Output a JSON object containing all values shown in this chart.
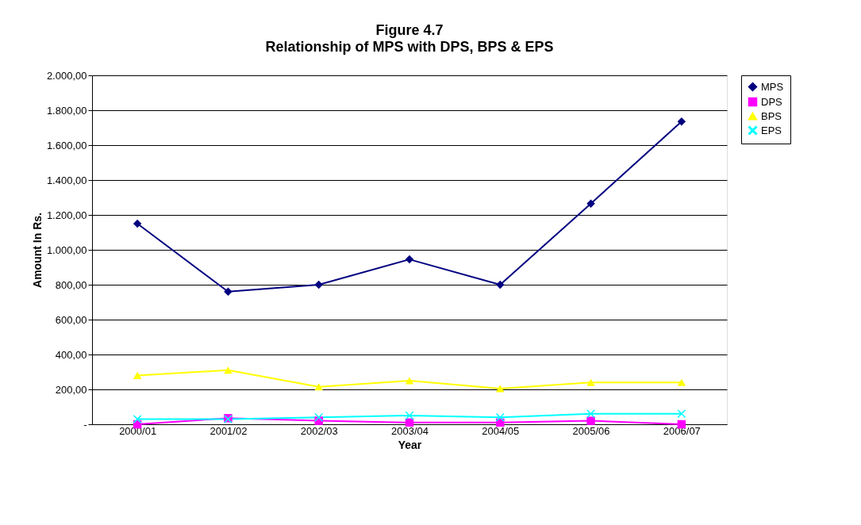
{
  "chart_data": {
    "type": "line",
    "title": "Figure 4.7",
    "subtitle": "Relationship of MPS with DPS, BPS & EPS",
    "xlabel": "Year",
    "ylabel": "Amount In Rs.",
    "categories": [
      "2000/01",
      "2001/02",
      "2002/03",
      "2003/04",
      "2004/05",
      "2005/06",
      "2006/07"
    ],
    "series": [
      {
        "name": "MPS",
        "color": "#000080",
        "marker": "diamond",
        "values": [
          1150,
          760,
          800,
          945,
          800,
          1265,
          1735
        ]
      },
      {
        "name": "DPS",
        "color": "#ff00ff",
        "marker": "square",
        "values": [
          0,
          35,
          20,
          10,
          10,
          20,
          0
        ]
      },
      {
        "name": "BPS",
        "color": "#ffff00",
        "marker": "triangle",
        "values": [
          280,
          310,
          215,
          250,
          205,
          240,
          240
        ]
      },
      {
        "name": "EPS",
        "color": "#00ffff",
        "marker": "cross",
        "values": [
          30,
          30,
          40,
          50,
          40,
          60,
          60
        ]
      }
    ],
    "ylim": [
      0,
      2000
    ],
    "yticks": [
      {
        "value": 0,
        "label": "-"
      },
      {
        "value": 200,
        "label": "200,00"
      },
      {
        "value": 400,
        "label": "400,00"
      },
      {
        "value": 600,
        "label": "600,00"
      },
      {
        "value": 800,
        "label": "800,00"
      },
      {
        "value": 1000,
        "label": "1.000,00"
      },
      {
        "value": 1200,
        "label": "1.200,00"
      },
      {
        "value": 1400,
        "label": "1.400,00"
      },
      {
        "value": 1600,
        "label": "1.600,00"
      },
      {
        "value": 1800,
        "label": "1.800,00"
      },
      {
        "value": 2000,
        "label": "2.000,00"
      }
    ],
    "grid": "y",
    "legend": "right",
    "line_style": "solid"
  }
}
